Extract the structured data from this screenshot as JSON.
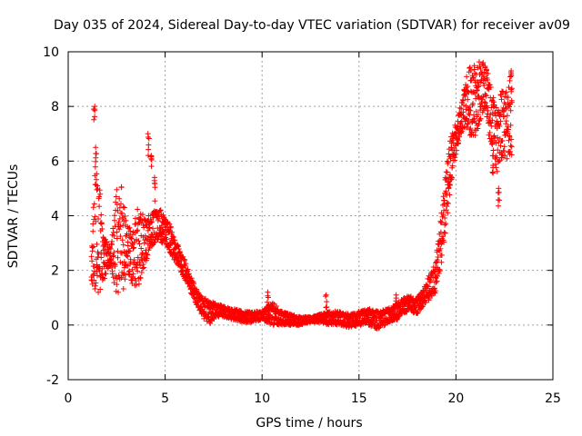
{
  "chart_data": {
    "type": "scatter",
    "title": "Day 035 of 2024, Sidereal Day-to-day VTEC variation (SDTVAR) for receiver av09",
    "xlabel": "GPS time / hours",
    "ylabel": "SDTVAR / TECUs",
    "xlim": [
      0,
      25
    ],
    "ylim": [
      -2,
      10
    ],
    "xticks": [
      0,
      5,
      10,
      15,
      20,
      25
    ],
    "yticks": [
      -2,
      0,
      2,
      4,
      6,
      8,
      10
    ],
    "grid": true,
    "marker": "+",
    "marker_color": "#ff0000",
    "series": [
      {
        "name": "SDTVAR",
        "bands": [
          {
            "x": [
              1.2,
              1.4,
              1.6,
              1.8,
              2.0,
              2.2,
              2.5,
              2.8,
              3.0,
              3.3,
              3.6,
              3.9,
              4.2,
              4.5,
              4.8,
              5.0,
              5.3,
              5.6,
              5.9,
              6.2,
              6.5,
              6.8,
              7.0,
              7.3,
              7.6,
              8.0,
              8.5,
              9.0,
              9.5,
              10.0,
              10.5,
              11.0,
              11.5,
              12.0,
              12.5,
              13.0,
              13.5,
              14.0,
              14.5,
              15.0,
              15.5,
              16.0,
              16.5,
              17.0,
              17.3,
              17.6,
              18.0,
              18.3,
              18.6,
              18.9,
              19.1,
              19.3,
              19.5,
              19.7,
              19.9,
              20.1,
              20.3,
              20.5,
              20.7,
              20.9,
              21.1,
              21.3,
              21.5,
              21.7,
              21.9,
              22.1,
              22.3,
              22.5,
              22.7,
              22.9
            ],
            "lo": [
              1.5,
              1.2,
              1.0,
              1.5,
              2.0,
              2.2,
              1.0,
              1.0,
              2.0,
              1.5,
              1.2,
              2.0,
              2.8,
              3.0,
              3.0,
              3.0,
              2.6,
              2.2,
              1.8,
              1.4,
              0.9,
              0.5,
              0.2,
              0.0,
              0.3,
              0.3,
              0.2,
              0.1,
              0.1,
              0.2,
              0.0,
              0.0,
              0.0,
              0.0,
              0.1,
              0.1,
              0.0,
              0.0,
              -0.1,
              0.0,
              0.0,
              -0.2,
              0.1,
              0.2,
              0.4,
              0.5,
              0.4,
              0.7,
              0.9,
              1.1,
              1.6,
              2.5,
              3.6,
              4.8,
              5.9,
              6.6,
              7.0,
              7.2,
              7.0,
              6.4,
              7.1,
              7.4,
              8.0,
              6.9,
              6.5,
              5.5,
              6.0,
              6.2,
              6.0,
              5.8
            ],
            "hi": [
              2.8,
              6.0,
              5.4,
              3.5,
              3.0,
              2.8,
              5.0,
              5.2,
              3.8,
              3.4,
              4.5,
              4.0,
              4.0,
              4.3,
              4.2,
              4.0,
              3.6,
              3.0,
              2.6,
              2.0,
              1.5,
              1.1,
              1.0,
              0.9,
              0.8,
              0.7,
              0.6,
              0.5,
              0.5,
              0.5,
              0.9,
              0.5,
              0.4,
              0.3,
              0.3,
              0.4,
              0.5,
              0.5,
              0.4,
              0.5,
              0.6,
              0.5,
              0.6,
              0.8,
              1.0,
              1.1,
              1.0,
              1.3,
              1.8,
              2.3,
              3.2,
              4.6,
              5.8,
              6.8,
              7.3,
              7.6,
              8.4,
              9.0,
              9.6,
              9.7,
              9.4,
              9.9,
              9.6,
              9.1,
              8.4,
              7.9,
              8.5,
              8.8,
              9.1,
              9.2
            ]
          }
        ],
        "spikes": [
          {
            "x": 1.35,
            "y": 8.0
          },
          {
            "x": 1.45,
            "y": 6.5
          },
          {
            "x": 4.15,
            "y": 7.0
          },
          {
            "x": 4.3,
            "y": 6.2
          },
          {
            "x": 4.45,
            "y": 5.4
          },
          {
            "x": 10.3,
            "y": 1.2
          },
          {
            "x": 13.3,
            "y": 1.1
          },
          {
            "x": 16.9,
            "y": 1.1
          },
          {
            "x": 21.9,
            "y": 6.2
          },
          {
            "x": 22.2,
            "y": 5.0
          },
          {
            "x": 22.85,
            "y": 9.3
          }
        ]
      }
    ]
  }
}
